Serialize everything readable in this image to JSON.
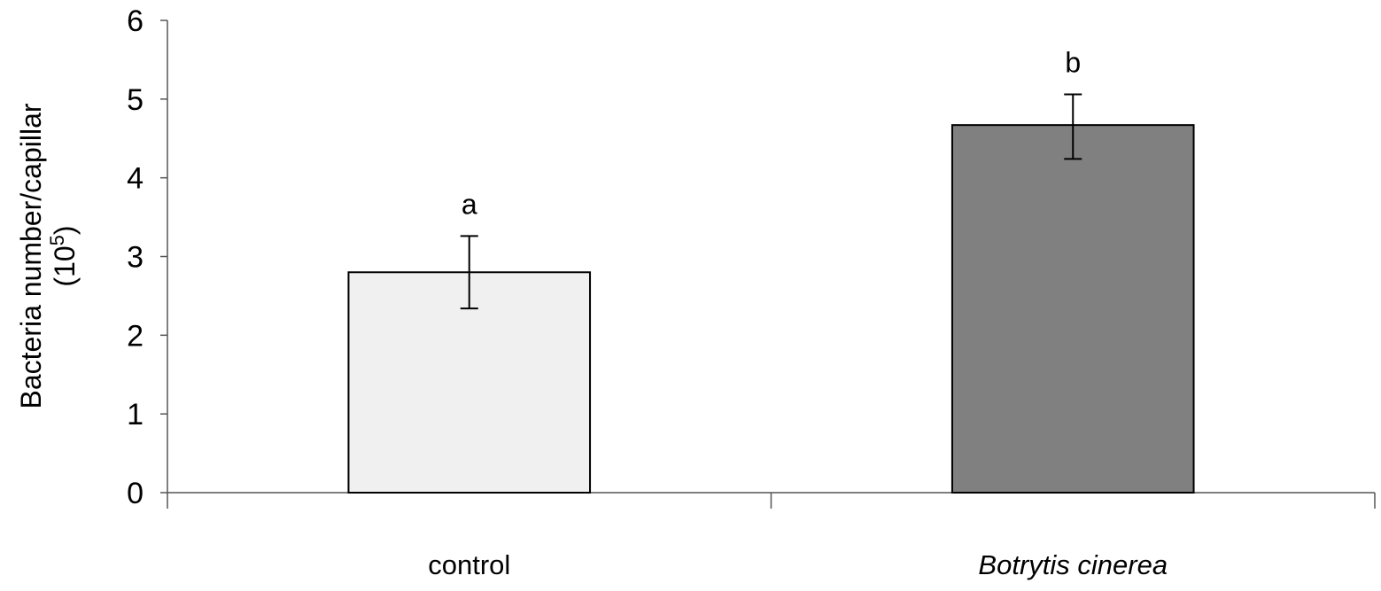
{
  "chart_data": {
    "type": "bar",
    "categories": [
      "control",
      "Botrytis cinerea"
    ],
    "category_italic": [
      false,
      true
    ],
    "values": [
      2.8,
      4.67
    ],
    "error_low": [
      2.34,
      4.24
    ],
    "error_high": [
      3.26,
      5.06
    ],
    "annotations": [
      "a",
      "b"
    ],
    "bar_colors": [
      "#f0f0f0",
      "#808080"
    ],
    "ylim": [
      0,
      6
    ],
    "yticks": [
      0,
      1,
      2,
      3,
      4,
      5,
      6
    ],
    "ylabel_line1": "Bacteria number/capillar",
    "ylabel_line2_base": "(10",
    "ylabel_line2_sup": "5",
    "ylabel_line2_end": ")",
    "xlabel": "",
    "title": "",
    "grid": false
  }
}
